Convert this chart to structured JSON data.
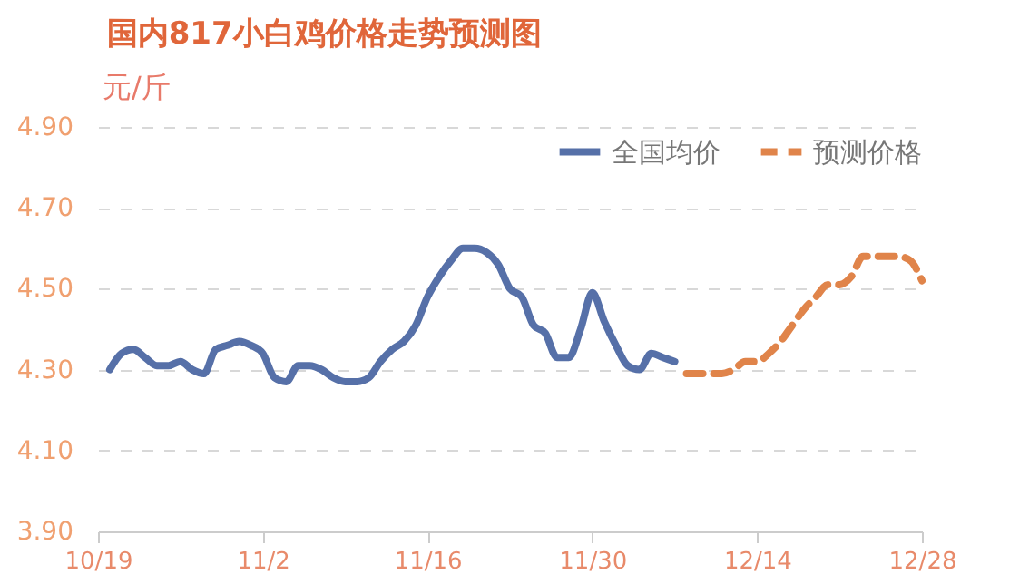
{
  "chart_data": {
    "type": "line",
    "title": "国内817小白鸡价格走势预测图",
    "ylabel": "元/斤",
    "xlim": [
      "--10-19",
      "--12-28"
    ],
    "xticks": [
      {
        "value": "--10-19",
        "label": "10/19"
      },
      {
        "value": "--11-02",
        "label": "11/2"
      },
      {
        "value": "--11-16",
        "label": "11/16"
      },
      {
        "value": "--11-30",
        "label": "11/30"
      },
      {
        "value": "--12-14",
        "label": "12/14"
      },
      {
        "value": "--12-28",
        "label": "12/28"
      }
    ],
    "ylim": [
      3.9,
      4.9
    ],
    "yticks": [
      {
        "value": 3.9,
        "label": "3.90"
      },
      {
        "value": 4.1,
        "label": "4.10"
      },
      {
        "value": 4.3,
        "label": "4.30"
      },
      {
        "value": 4.5,
        "label": "4.50"
      },
      {
        "value": 4.7,
        "label": "4.70"
      },
      {
        "value": 4.9,
        "label": "4.90"
      }
    ],
    "grid": "y",
    "legend": "top right",
    "series": [
      {
        "name": "全国均价",
        "color": "#5670a8",
        "line_style": "solid",
        "x": [
          "--10-20",
          "--10-21",
          "--10-22",
          "--10-23",
          "--10-24",
          "--10-25",
          "--10-26",
          "--10-27",
          "--10-28",
          "--10-29",
          "--10-30",
          "--10-31",
          "--11-01",
          "--11-02",
          "--11-03",
          "--11-04",
          "--11-05",
          "--11-06",
          "--11-07",
          "--11-08",
          "--11-09",
          "--11-10",
          "--11-11",
          "--11-12",
          "--11-13",
          "--11-14",
          "--11-15",
          "--11-16",
          "--11-17",
          "--11-18",
          "--11-19",
          "--11-20",
          "--11-21",
          "--11-22",
          "--11-23",
          "--11-24",
          "--11-25",
          "--11-26",
          "--11-27",
          "--11-28",
          "--11-29",
          "--11-30",
          "--12-01",
          "--12-02",
          "--12-03",
          "--12-04",
          "--12-05",
          "--12-06",
          "--12-07"
        ],
        "values": [
          4.3,
          4.34,
          4.35,
          4.33,
          4.31,
          4.31,
          4.32,
          4.3,
          4.29,
          4.35,
          4.36,
          4.37,
          4.36,
          4.34,
          4.28,
          4.27,
          4.31,
          4.31,
          4.3,
          4.28,
          4.27,
          4.27,
          4.28,
          4.32,
          4.35,
          4.37,
          4.41,
          4.48,
          4.53,
          4.57,
          4.6,
          4.6,
          4.59,
          4.56,
          4.5,
          4.48,
          4.41,
          4.39,
          4.33,
          4.33,
          4.4,
          4.49,
          4.42,
          4.36,
          4.31,
          4.3,
          4.34,
          4.33,
          4.32
        ]
      },
      {
        "name": "预测价格",
        "color": "#e0844a",
        "line_style": "dashed",
        "x": [
          "--12-08",
          "--12-09",
          "--12-10",
          "--12-11",
          "--12-12",
          "--12-13",
          "--12-14",
          "--12-15",
          "--12-16",
          "--12-17",
          "--12-18",
          "--12-19",
          "--12-20",
          "--12-21",
          "--12-22",
          "--12-23",
          "--12-24",
          "--12-25",
          "--12-26",
          "--12-27",
          "--12-28"
        ],
        "values": [
          4.29,
          4.29,
          4.29,
          4.29,
          4.3,
          4.32,
          4.32,
          4.34,
          4.37,
          4.41,
          4.45,
          4.48,
          4.51,
          4.51,
          4.53,
          4.58,
          4.58,
          4.58,
          4.58,
          4.57,
          4.52
        ]
      }
    ]
  }
}
